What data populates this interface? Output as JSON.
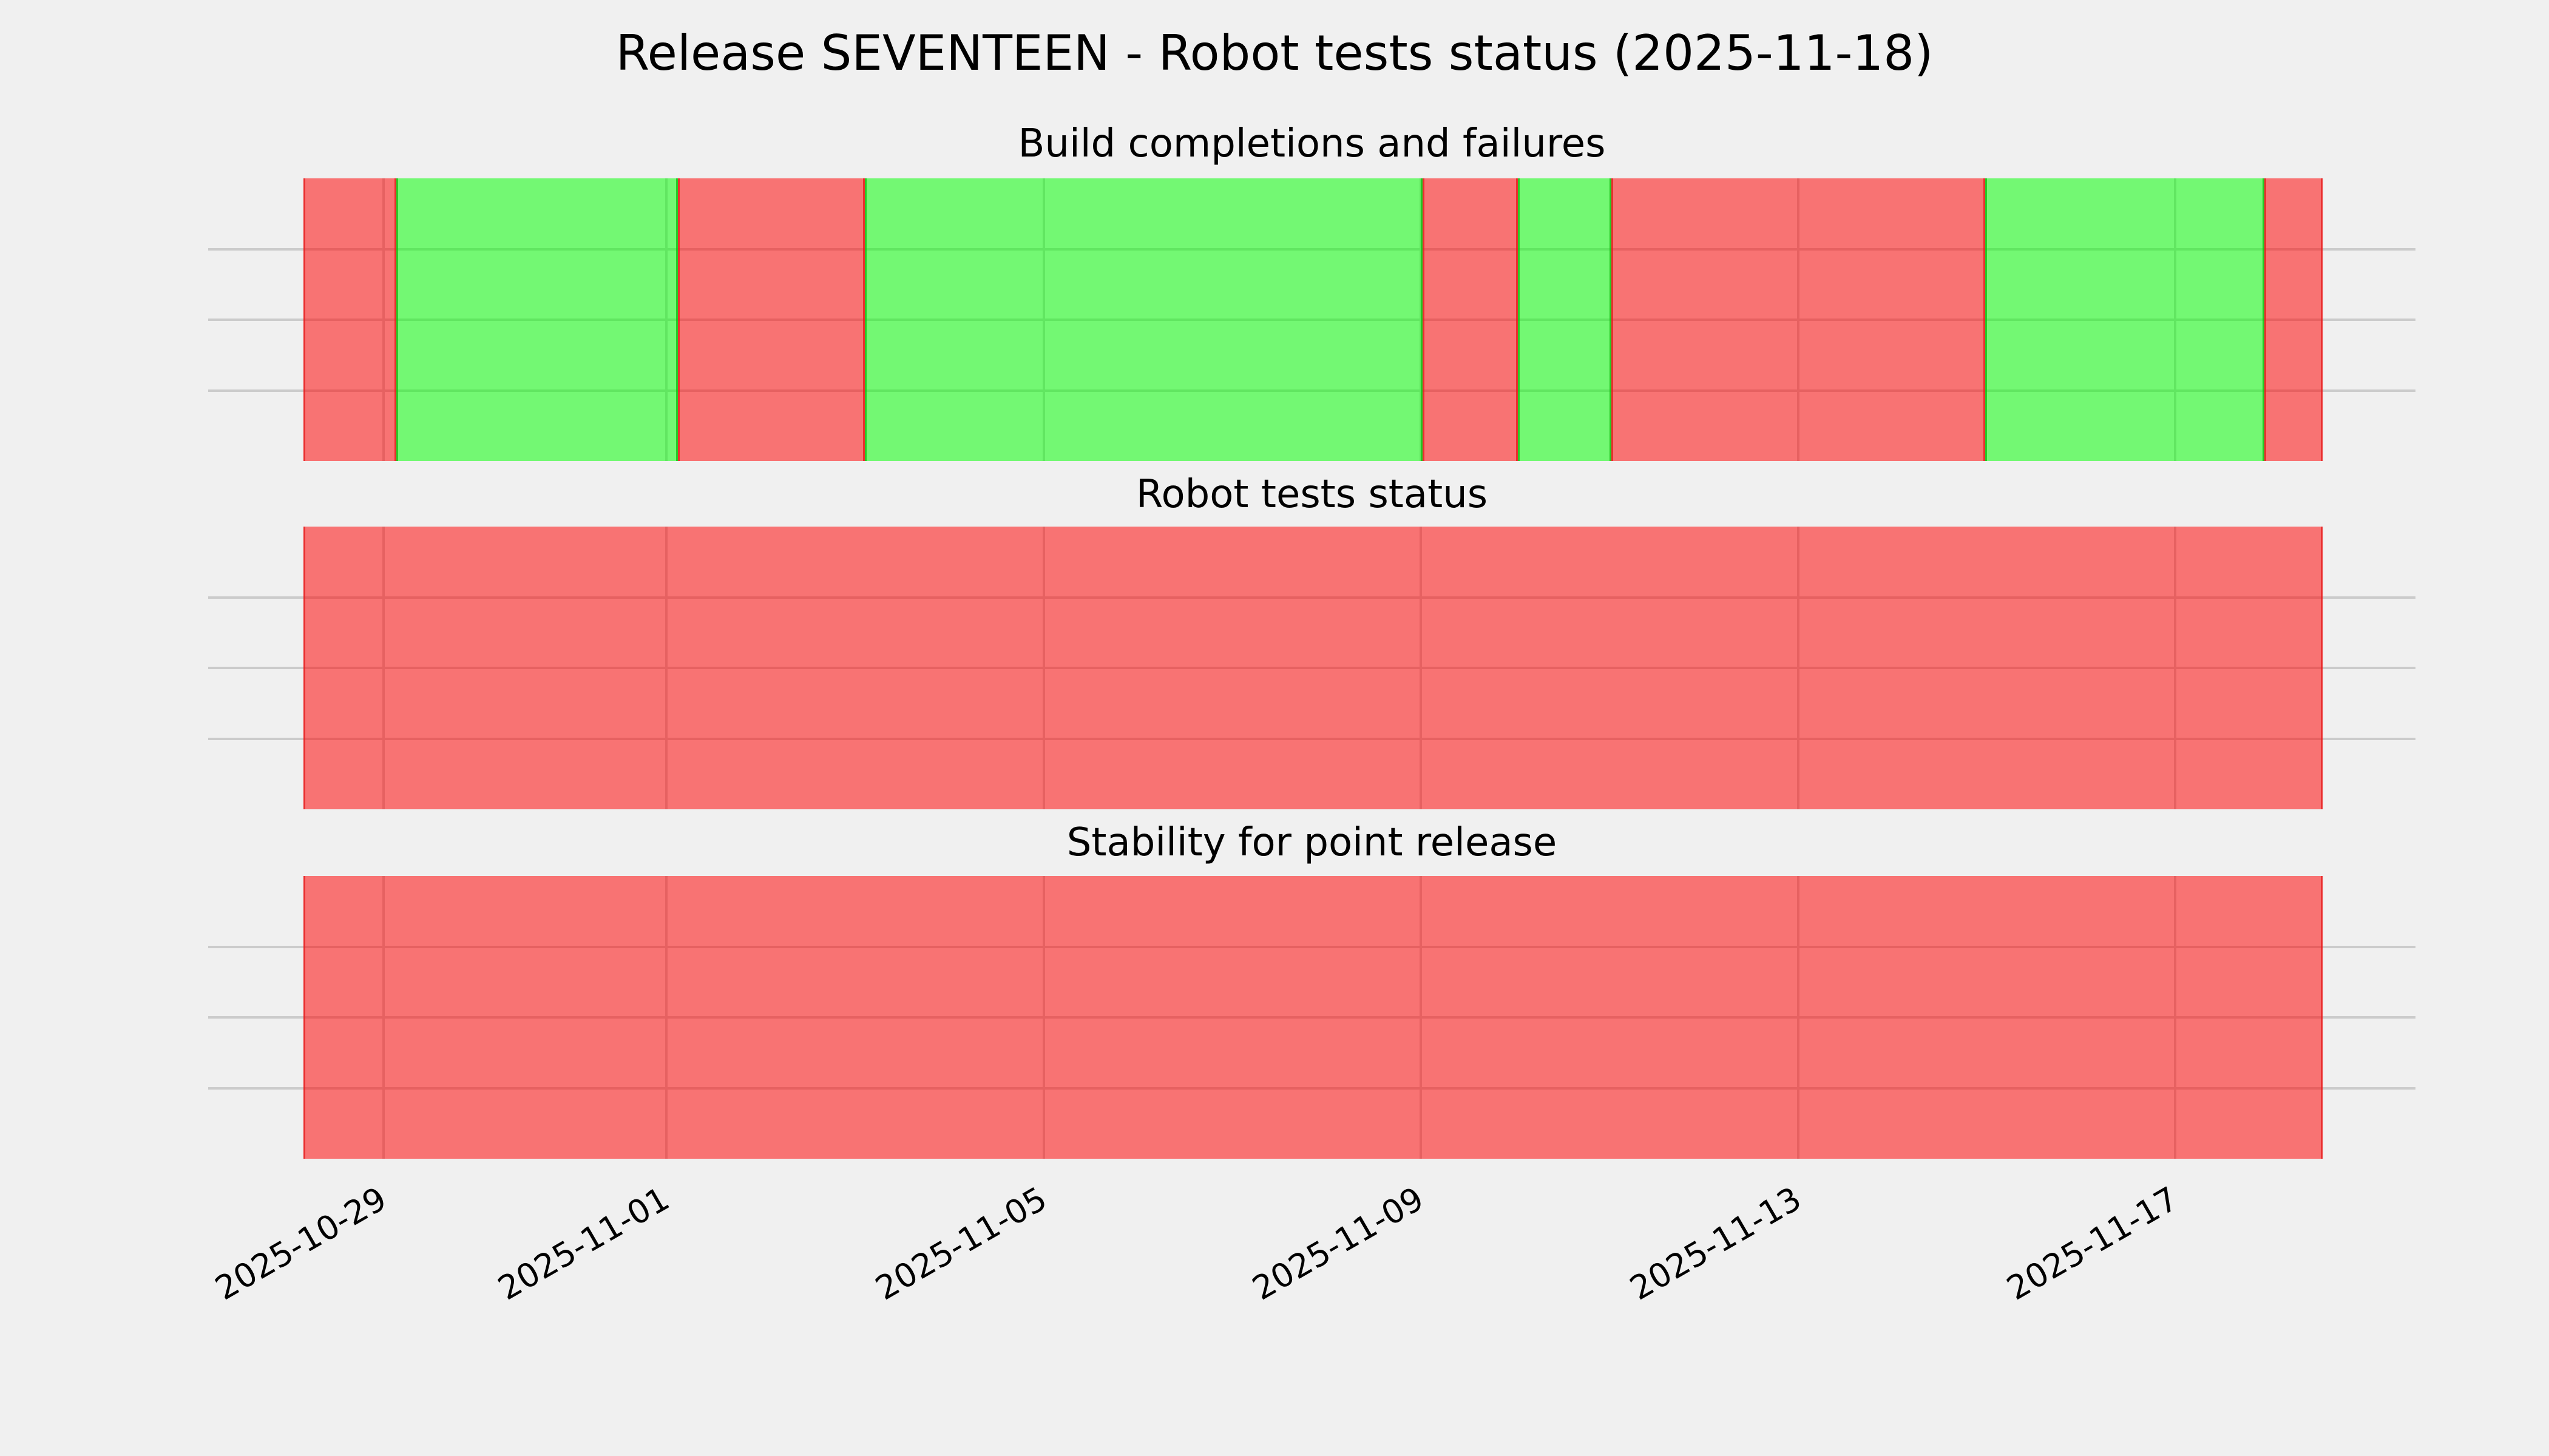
{
  "title": "Release SEVENTEEN - Robot tests status (2025-11-18)",
  "colors": {
    "background": "#F0F0F0",
    "grid": "#CBCBCB",
    "pass_fill": "rgba(0,255,0,0.52)",
    "fail_fill": "rgba(255,0,0,0.52)",
    "pass_edge": "rgba(20,190,20,0.8)",
    "fail_edge": "rgba(230,30,30,0.8)",
    "text": "#000000"
  },
  "x_axis": {
    "rotation_deg": 30,
    "ticks": [
      {
        "label": "2025-10-29",
        "pos_pct": 3.97
      },
      {
        "label": "2025-11-01",
        "pos_pct": 17.97
      },
      {
        "label": "2025-11-05",
        "pos_pct": 36.67
      },
      {
        "label": "2025-11-09",
        "pos_pct": 55.34
      },
      {
        "label": "2025-11-13",
        "pos_pct": 74.03
      },
      {
        "label": "2025-11-17",
        "pos_pct": 92.7
      }
    ]
  },
  "panels": [
    {
      "title": "Build completions and failures",
      "segments": [
        {
          "status": "fail",
          "start_pct": 0,
          "end_pct": 4.6,
          "from": "2025-10-28",
          "to": "2025-10-29"
        },
        {
          "status": "pass",
          "start_pct": 4.6,
          "end_pct": 18.55,
          "from": "2025-10-29",
          "to": "2025-11-01"
        },
        {
          "status": "fail",
          "start_pct": 18.55,
          "end_pct": 27.8,
          "from": "2025-11-01",
          "to": "2025-11-03"
        },
        {
          "status": "pass",
          "start_pct": 27.8,
          "end_pct": 55.42,
          "from": "2025-11-03",
          "to": "2025-11-09"
        },
        {
          "status": "fail",
          "start_pct": 55.42,
          "end_pct": 60.14,
          "from": "2025-11-09",
          "to": "2025-11-10"
        },
        {
          "status": "pass",
          "start_pct": 60.14,
          "end_pct": 64.77,
          "from": "2025-11-10",
          "to": "2025-11-11"
        },
        {
          "status": "fail",
          "start_pct": 64.77,
          "end_pct": 83.29,
          "from": "2025-11-11",
          "to": "2025-11-15"
        },
        {
          "status": "pass",
          "start_pct": 83.29,
          "end_pct": 97.11,
          "from": "2025-11-15",
          "to": "2025-11-18"
        },
        {
          "status": "fail",
          "start_pct": 97.11,
          "end_pct": 100,
          "from": "2025-11-18",
          "to": "2025-11-18"
        }
      ]
    },
    {
      "title": "Robot tests status",
      "segments": [
        {
          "status": "fail",
          "start_pct": 0,
          "end_pct": 100,
          "from": "2025-10-28",
          "to": "2025-11-18"
        }
      ]
    },
    {
      "title": "Stability for point release",
      "segments": [
        {
          "status": "fail",
          "start_pct": 0,
          "end_pct": 100,
          "from": "2025-10-28",
          "to": "2025-11-18"
        }
      ]
    }
  ],
  "chart_data": {
    "type": "heatmap",
    "title": "Release SEVENTEEN - Robot tests status (2025-11-18)",
    "x": [
      "2025-10-28",
      "2025-10-29",
      "2025-10-30",
      "2025-10-31",
      "2025-11-01",
      "2025-11-02",
      "2025-11-03",
      "2025-11-04",
      "2025-11-05",
      "2025-11-06",
      "2025-11-07",
      "2025-11-08",
      "2025-11-09",
      "2025-11-10",
      "2025-11-11",
      "2025-11-12",
      "2025-11-13",
      "2025-11-14",
      "2025-11-15",
      "2025-11-16",
      "2025-11-17",
      "2025-11-18"
    ],
    "x_tick_labels": [
      "2025-10-29",
      "2025-11-01",
      "2025-11-05",
      "2025-11-09",
      "2025-11-13",
      "2025-11-17"
    ],
    "series": [
      {
        "name": "Build completions and failures",
        "values": [
          "fail",
          "pass",
          "pass",
          "pass",
          "fail",
          "fail",
          "pass",
          "pass",
          "pass",
          "pass",
          "pass",
          "pass",
          "fail",
          "pass",
          "fail",
          "fail",
          "fail",
          "fail",
          "pass",
          "pass",
          "pass",
          "fail"
        ]
      },
      {
        "name": "Robot tests status",
        "values": [
          "fail",
          "fail",
          "fail",
          "fail",
          "fail",
          "fail",
          "fail",
          "fail",
          "fail",
          "fail",
          "fail",
          "fail",
          "fail",
          "fail",
          "fail",
          "fail",
          "fail",
          "fail",
          "fail",
          "fail",
          "fail",
          "fail"
        ]
      },
      {
        "name": "Stability for point release",
        "values": [
          "fail",
          "fail",
          "fail",
          "fail",
          "fail",
          "fail",
          "fail",
          "fail",
          "fail",
          "fail",
          "fail",
          "fail",
          "fail",
          "fail",
          "fail",
          "fail",
          "fail",
          "fail",
          "fail",
          "fail",
          "fail",
          "fail"
        ]
      }
    ],
    "value_colors": {
      "pass": "#78F778",
      "fail": "#F87878"
    },
    "grid": true,
    "legend": false,
    "xlabel": "",
    "ylabel": ""
  }
}
